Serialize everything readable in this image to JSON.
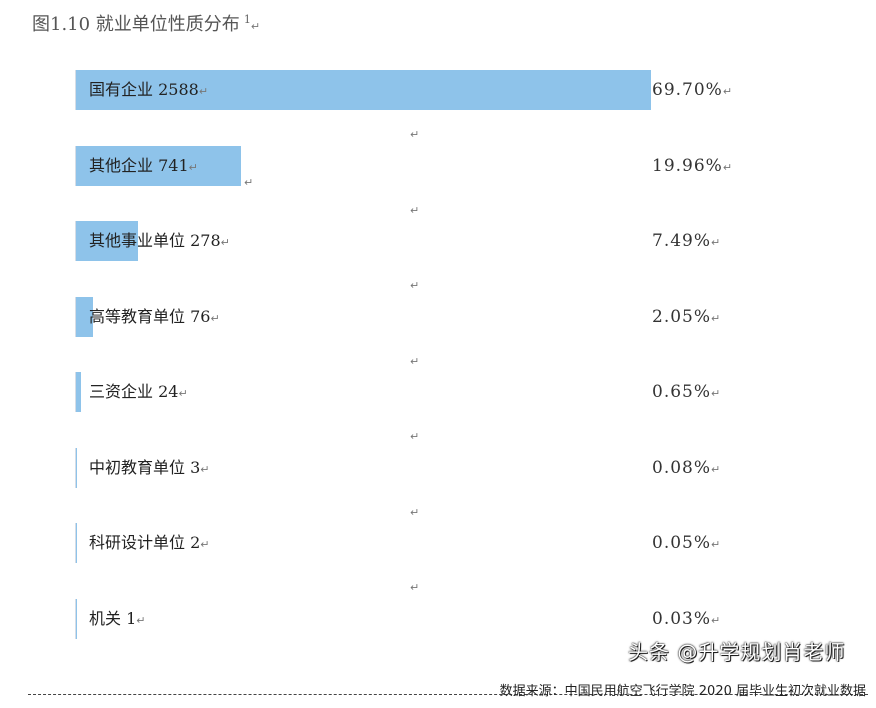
{
  "chart_data": {
    "type": "bar",
    "orientation": "horizontal",
    "title": "图1.10 就业单位性质分布",
    "title_footnote": "1",
    "categories": [
      "国有企业",
      "其他企业",
      "其他事业单位",
      "高等教育单位",
      "三资企业",
      "中初教育单位",
      "科研设计单位",
      "机关"
    ],
    "counts": [
      2588,
      741,
      278,
      76,
      24,
      3,
      2,
      1
    ],
    "percent_labels": [
      "69.70%",
      "19.96%",
      "7.49%",
      "2.05%",
      "0.65%",
      "0.08%",
      "0.05%",
      "0.03%"
    ],
    "values": [
      69.7,
      19.96,
      7.49,
      2.05,
      0.65,
      0.08,
      0.05,
      0.03
    ],
    "bar_color": "#8ec3ea",
    "grid": false,
    "legend": "none"
  },
  "source": "数据来源：中国民用航空飞行学院 2020 届毕业生初次就业数据",
  "watermark": "头条 @升学规划肖老师",
  "para_mark": "↵"
}
